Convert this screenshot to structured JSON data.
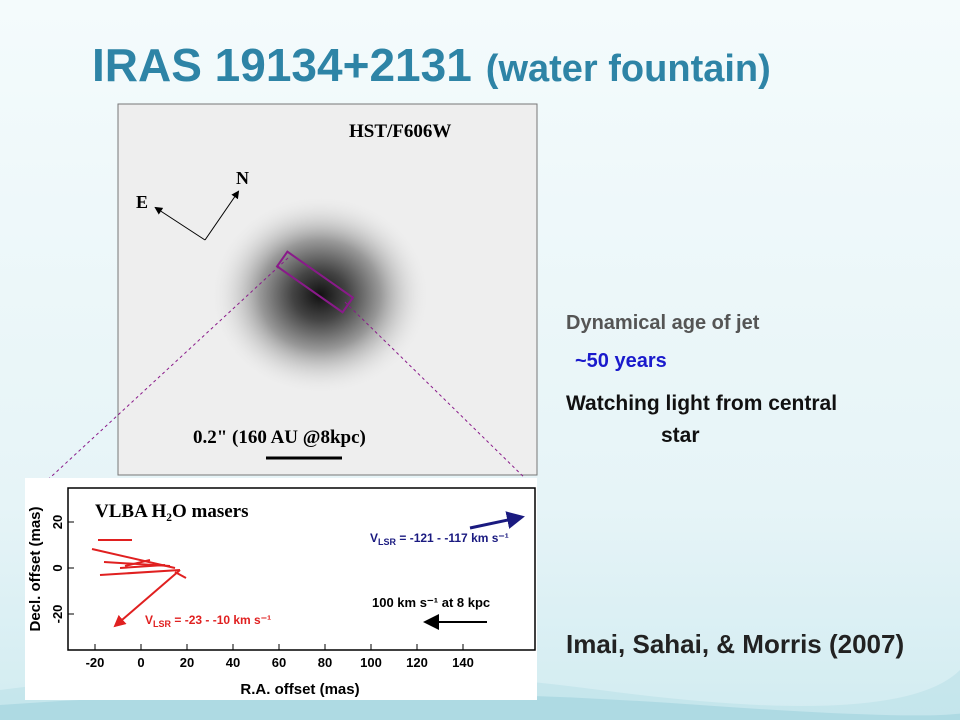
{
  "title": {
    "main": "IRAS 19134+2131",
    "sub": "(water fountain)"
  },
  "bullets": [
    "Dynamical age of jet",
    "~50 years",
    "Watching light from central star"
  ],
  "citation": "Imai, Sahai, & Morris (2007)",
  "hst_image": {
    "label": "HST/F606W",
    "north": "N",
    "east": "E",
    "scale_bar": "0.2\" (160 AU @8kpc)"
  },
  "maser_plot": {
    "title": "VLBA H₂O masers",
    "x_label": "R.A. offset (mas)",
    "y_label": "Decl. offset (mas)",
    "x_ticks": [
      -20,
      0,
      20,
      40,
      60,
      80,
      100,
      120,
      140
    ],
    "y_ticks": [
      20,
      0,
      -20
    ],
    "blue_label": {
      "symbol": "V",
      "subscript": "LSR",
      "text": " = -121 - -117 km s⁻¹"
    },
    "red_label": {
      "symbol": "V",
      "subscript": "LSR",
      "text": " = -23 - -10 km s⁻¹"
    },
    "scale_label": "100 km s⁻¹ at 8 kpc"
  }
}
